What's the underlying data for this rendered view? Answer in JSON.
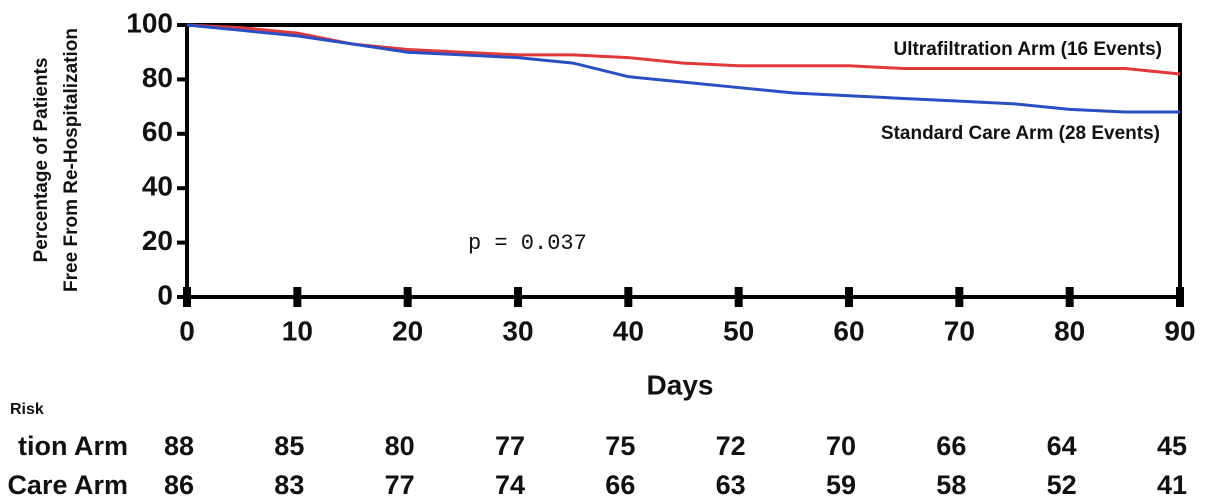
{
  "chart_data": {
    "type": "line",
    "ylabel": [
      "Percentage of Patients",
      "Free From Re-Hospitalization"
    ],
    "xlabel": "Days",
    "x": [
      0,
      5,
      10,
      15,
      20,
      25,
      30,
      35,
      40,
      45,
      50,
      55,
      60,
      65,
      70,
      75,
      80,
      85,
      90
    ],
    "series": [
      {
        "name": "Ultrafiltration Arm (16 Events)",
        "color": "#e0393b",
        "values": [
          100,
          99,
          97,
          93,
          91,
          90,
          89,
          89,
          88,
          86,
          85,
          85,
          85,
          84,
          84,
          84,
          84,
          84,
          82
        ]
      },
      {
        "name": "Standard Care Arm (28 Events)",
        "color": "#2b4fc2",
        "values": [
          100,
          98,
          96,
          93,
          90,
          89,
          88,
          86,
          81,
          79,
          77,
          75,
          74,
          73,
          72,
          71,
          69,
          68,
          68
        ]
      }
    ],
    "annotation": "p = 0.037",
    "xlim": [
      0,
      90
    ],
    "xticks": [
      0,
      10,
      20,
      30,
      40,
      50,
      60,
      70,
      80,
      90
    ],
    "ylim": [
      0,
      100
    ],
    "yticks": [
      0,
      20,
      40,
      60,
      80,
      100
    ]
  },
  "risk_table": {
    "title": "Risk",
    "rows": [
      {
        "label": "tion Arm",
        "values": [
          "88",
          "85",
          "80",
          "77",
          "75",
          "72",
          "70",
          "66",
          "64",
          "45"
        ]
      },
      {
        "label": "Care Arm",
        "values": [
          "86",
          "83",
          "77",
          "74",
          "66",
          "63",
          "59",
          "58",
          "52",
          "41"
        ]
      }
    ]
  }
}
